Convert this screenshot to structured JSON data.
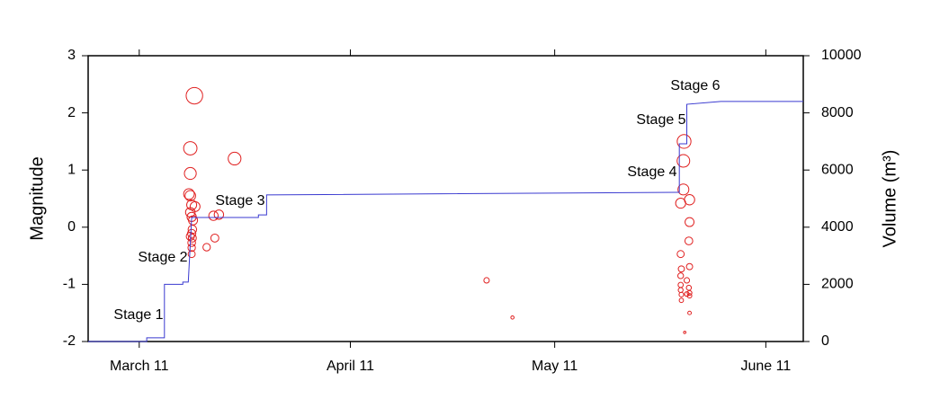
{
  "chart_data": {
    "type": "scatter",
    "xlim": [
      -7.5,
      97.5
    ],
    "xticks": [
      {
        "value": 0,
        "label": "March 11"
      },
      {
        "value": 31,
        "label": "April 11"
      },
      {
        "value": 61,
        "label": "May 11"
      },
      {
        "value": 92,
        "label": "June 11"
      }
    ],
    "ylabel": "Magnitude",
    "ylim": [
      -2,
      3
    ],
    "yticks": [
      -2,
      -1,
      0,
      1,
      2,
      3
    ],
    "y2label": "Volume (m³)",
    "y2lim": [
      0,
      10000
    ],
    "y2ticks": [
      0,
      2000,
      4000,
      6000,
      8000,
      10000
    ],
    "annotations": [
      "Stage 1",
      "Stage 2",
      "Stage 3",
      "Stage 4",
      "Stage 5",
      "Stage 6"
    ],
    "series": [
      {
        "type": "scatter",
        "color": "#e02020",
        "x": [
          8.1,
          7.5,
          7.5,
          7.3,
          7.5,
          7.7,
          8.2,
          7.5,
          7.7,
          7.9,
          7.8,
          7.7,
          7.5,
          7.8,
          7.7,
          7.7,
          7.7,
          10.9,
          11.7,
          14.0,
          9.9,
          11.1,
          51.0,
          54.8,
          80.0,
          79.9,
          79.9,
          79.5,
          80.8,
          80.8,
          80.7,
          79.5,
          80.8,
          79.6,
          79.5,
          80.4,
          79.5,
          80.7,
          79.5,
          80.8,
          80.4,
          79.6,
          80.8,
          79.6,
          80.8,
          80.1
        ],
        "values": [
          2.3,
          1.38,
          0.94,
          0.58,
          0.55,
          0.39,
          0.36,
          0.26,
          0.18,
          0.12,
          -0.04,
          -0.11,
          -0.16,
          -0.19,
          -0.27,
          -0.36,
          -0.47,
          0.2,
          0.22,
          1.2,
          -0.35,
          -0.19,
          -0.93,
          -1.58,
          1.5,
          1.16,
          0.66,
          0.42,
          0.48,
          0.09,
          -0.24,
          -0.47,
          -0.69,
          -0.73,
          -0.85,
          -0.93,
          -1.01,
          -1.06,
          -1.1,
          -1.15,
          -1.17,
          -1.18,
          -1.2,
          -1.28,
          -1.5,
          -1.84
        ]
      },
      {
        "type": "line",
        "axis": "y2",
        "color": "#3a3ad0",
        "x": [
          -7.5,
          1.1,
          1.1,
          3.7,
          3.7,
          6.4,
          6.4,
          7.2,
          7.7,
          17.5,
          17.5,
          18.7,
          18.7,
          79.1,
          79.3,
          79.3,
          80.4,
          80.4,
          85.4,
          97.5
        ],
        "values": [
          0,
          0,
          130,
          130,
          2000,
          2000,
          2080,
          2080,
          4340,
          4340,
          4430,
          4430,
          5130,
          5220,
          5220,
          6920,
          6920,
          8300,
          8400,
          8400
        ]
      }
    ]
  }
}
